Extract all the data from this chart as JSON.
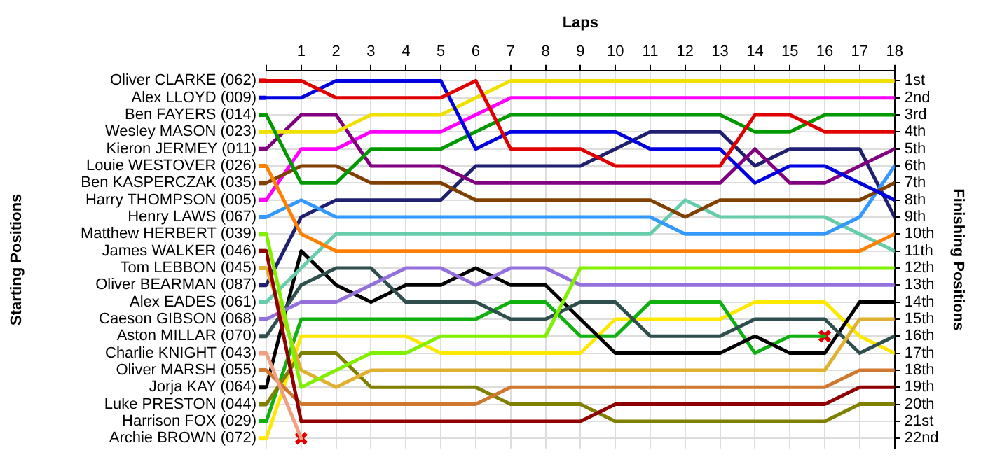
{
  "chart_data": {
    "type": "line",
    "xlabel": "Laps",
    "ylabel": "Finishing Positions",
    "annotations": [
      "Starting Positions"
    ],
    "x": [
      0,
      1,
      2,
      3,
      4,
      5,
      6,
      7,
      8,
      9,
      10,
      11,
      12,
      13,
      14,
      15,
      16,
      17,
      18
    ],
    "xlim": [
      0,
      18
    ],
    "xticks": [
      {
        "value": 0,
        "label": null
      },
      1,
      2,
      3,
      4,
      5,
      6,
      7,
      8,
      9,
      10,
      11,
      12,
      13,
      14,
      15,
      16,
      17,
      18
    ],
    "ylim": [
      22.6,
      0.4
    ],
    "yticks": [
      {
        "value": 1,
        "label": "1st"
      },
      {
        "value": 2,
        "label": "2nd"
      },
      {
        "value": 3,
        "label": "3rd"
      },
      {
        "value": 4,
        "label": "4th"
      },
      {
        "value": 5,
        "label": "5th"
      },
      {
        "value": 6,
        "label": "6th"
      },
      {
        "value": 7,
        "label": "7th"
      },
      {
        "value": 8,
        "label": "8th"
      },
      {
        "value": 9,
        "label": "9th"
      },
      {
        "value": 10,
        "label": "10th"
      },
      {
        "value": 11,
        "label": "11th"
      },
      {
        "value": 12,
        "label": "12th"
      },
      {
        "value": 13,
        "label": "13th"
      },
      {
        "value": 14,
        "label": "14th"
      },
      {
        "value": 15,
        "label": "15th"
      },
      {
        "value": 16,
        "label": "16th"
      },
      {
        "value": 17,
        "label": "17th"
      },
      {
        "value": 18,
        "label": "18th"
      },
      {
        "value": 19,
        "label": "19th"
      },
      {
        "value": 20,
        "label": "20th"
      },
      {
        "value": 21,
        "label": "21st"
      },
      {
        "value": 22,
        "label": "22nd"
      }
    ],
    "grid": true,
    "legend": "left",
    "marker": "none",
    "line_style": "solid",
    "series": [
      {
        "name": "Oliver CLARKE (062)",
        "color": "#e00000",
        "values": [
          1,
          1,
          2,
          2,
          2,
          2,
          1,
          5,
          5,
          5,
          6,
          6,
          6,
          6,
          3,
          3,
          4,
          4,
          4
        ]
      },
      {
        "name": "Alex LLOYD (009)",
        "color": "#0000e0",
        "values": [
          2,
          2,
          1,
          1,
          1,
          1,
          5,
          4,
          4,
          4,
          4,
          5,
          5,
          5,
          7,
          6,
          6,
          7,
          8
        ]
      },
      {
        "name": "Ben FAYERS (014)",
        "color": "#009900",
        "values": [
          3,
          7,
          7,
          5,
          5,
          5,
          4,
          3,
          3,
          3,
          3,
          3,
          3,
          3,
          4,
          4,
          3,
          3,
          3
        ]
      },
      {
        "name": "Wesley MASON (023)",
        "color": "#f0e000",
        "values": [
          4,
          4,
          4,
          3,
          3,
          3,
          2,
          1,
          1,
          1,
          1,
          1,
          1,
          1,
          1,
          1,
          1,
          1,
          1
        ]
      },
      {
        "name": "Kieron JERMEY (011)",
        "color": "#800080",
        "values": [
          5,
          3,
          3,
          6,
          6,
          6,
          7,
          7,
          7,
          7,
          7,
          7,
          7,
          7,
          5,
          7,
          7,
          6,
          5
        ]
      },
      {
        "name": "Louie WESTOVER (026)",
        "color": "#ff8000",
        "values": [
          6,
          10,
          11,
          11,
          11,
          11,
          11,
          11,
          11,
          11,
          11,
          11,
          11,
          11,
          11,
          11,
          11,
          11,
          10
        ]
      },
      {
        "name": "Ben KASPERCZAK (035)",
        "color": "#804000",
        "values": [
          7,
          6,
          6,
          7,
          7,
          7,
          8,
          8,
          8,
          8,
          8,
          8,
          9,
          8,
          8,
          8,
          8,
          8,
          7
        ]
      },
      {
        "name": "Harry THOMPSON (005)",
        "color": "#ff00ff",
        "values": [
          8,
          5,
          5,
          4,
          4,
          4,
          3,
          2,
          2,
          2,
          2,
          2,
          2,
          2,
          2,
          2,
          2,
          2,
          2
        ]
      },
      {
        "name": "Henry LAWS (067)",
        "color": "#3399ff",
        "values": [
          9,
          8,
          9,
          9,
          9,
          9,
          9,
          9,
          9,
          9,
          9,
          9,
          10,
          10,
          10,
          10,
          10,
          9,
          6
        ]
      },
      {
        "name": "Matthew HERBERT (039)",
        "color": "#80f000",
        "values": [
          10,
          19,
          18,
          17,
          17,
          16,
          16,
          16,
          16,
          12,
          12,
          12,
          12,
          12,
          12,
          12,
          12,
          12,
          12
        ]
      },
      {
        "name": "James WALKER (046)",
        "color": "#900000",
        "values": [
          11,
          21,
          21,
          21,
          21,
          21,
          21,
          21,
          21,
          21,
          20,
          20,
          20,
          20,
          20,
          20,
          20,
          19,
          19
        ]
      },
      {
        "name": "Tom LEBBON (045)",
        "color": "#e0b030",
        "values": [
          12,
          18,
          19,
          18,
          18,
          18,
          18,
          18,
          18,
          18,
          18,
          18,
          18,
          18,
          18,
          18,
          18,
          15,
          15
        ]
      },
      {
        "name": "Oliver BEARMAN (087)",
        "color": "#202070",
        "values": [
          13,
          9,
          8,
          8,
          8,
          8,
          6,
          6,
          6,
          6,
          5,
          4,
          4,
          4,
          6,
          5,
          5,
          5,
          9
        ]
      },
      {
        "name": "Alex EADES (061)",
        "color": "#66ccaa",
        "values": [
          14,
          12,
          10,
          10,
          10,
          10,
          10,
          10,
          10,
          10,
          10,
          10,
          8,
          9,
          9,
          9,
          9,
          10,
          11
        ]
      },
      {
        "name": "Caeson GIBSON (068)",
        "color": "#9370db",
        "values": [
          15,
          14,
          14,
          13,
          12,
          12,
          13,
          12,
          12,
          13,
          13,
          13,
          13,
          13,
          13,
          13,
          13,
          13,
          13
        ]
      },
      {
        "name": "Aston MILLAR (070)",
        "color": "#2f4f4f",
        "values": [
          16,
          13,
          12,
          12,
          14,
          14,
          14,
          15,
          15,
          14,
          14,
          16,
          16,
          16,
          15,
          15,
          15,
          17,
          16
        ]
      },
      {
        "name": "Charlie KNIGHT (043)",
        "color": "#f0a080",
        "values": [
          17,
          22,
          null,
          null,
          null,
          null,
          null,
          null,
          null,
          null,
          null,
          null,
          null,
          null,
          null,
          null,
          null,
          null,
          null
        ]
      },
      {
        "name": "Oliver MARSH (055)",
        "color": "#d07830",
        "values": [
          18,
          20,
          20,
          20,
          20,
          20,
          20,
          19,
          19,
          19,
          19,
          19,
          19,
          19,
          19,
          19,
          19,
          18,
          18
        ]
      },
      {
        "name": "Jorja KAY (064)",
        "color": "#000000",
        "values": [
          19,
          11,
          13,
          14,
          13,
          13,
          12,
          13,
          13,
          15,
          17,
          17,
          17,
          17,
          16,
          17,
          17,
          14,
          14
        ]
      },
      {
        "name": "Luke PRESTON (044)",
        "color": "#808000",
        "values": [
          20,
          17,
          17,
          19,
          19,
          19,
          19,
          20,
          20,
          20,
          21,
          21,
          21,
          21,
          21,
          21,
          21,
          20,
          20
        ]
      },
      {
        "name": "Harrison FOX (029)",
        "color": "#10b010",
        "values": [
          21,
          15,
          15,
          15,
          15,
          15,
          15,
          14,
          14,
          16,
          16,
          14,
          14,
          14,
          17,
          16,
          16,
          null,
          null
        ]
      },
      {
        "name": "Archie BROWN (072)",
        "color": "#ffe800",
        "values": [
          22,
          16,
          16,
          16,
          16,
          17,
          17,
          17,
          17,
          17,
          15,
          15,
          15,
          15,
          14,
          14,
          14,
          16,
          17
        ]
      },
      {
        "type": "scatter",
        "marker": "cross",
        "color": "#e00000",
        "x": [
          1,
          16
        ],
        "values": [
          22,
          16
        ]
      }
    ]
  }
}
